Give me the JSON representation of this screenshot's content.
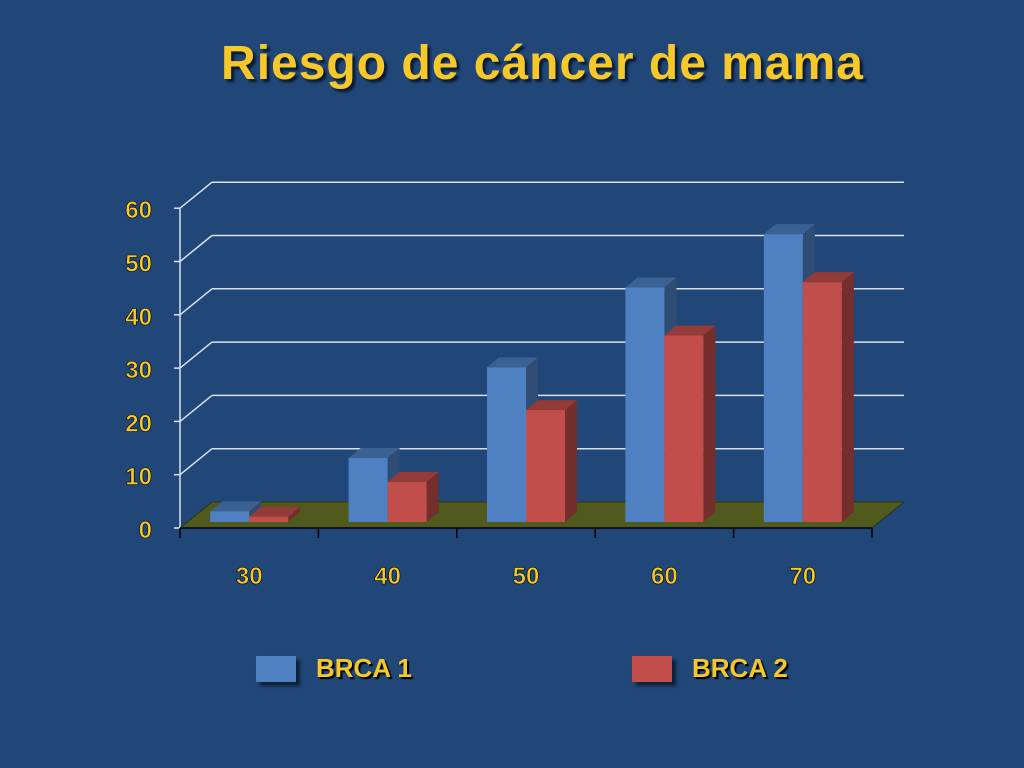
{
  "chart_data": {
    "type": "bar",
    "title": "Riesgo de cáncer de mama",
    "categories": [
      "30",
      "40",
      "50",
      "60",
      "70"
    ],
    "series": [
      {
        "name": "BRCA 1",
        "values": [
          2,
          12,
          29,
          44,
          54
        ],
        "color": "#4f80c2"
      },
      {
        "name": "BRCA 2",
        "values": [
          1,
          7.5,
          21,
          35,
          45
        ],
        "color": "#c24e4b"
      }
    ],
    "yticks": [
      "0",
      "10",
      "20",
      "30",
      "40",
      "50",
      "60"
    ],
    "ylim": [
      0,
      60
    ],
    "xlabel": "",
    "ylabel": "",
    "grid": true,
    "legend_position": "bottom",
    "colors": {
      "background": "#204778",
      "text": "#f6c82a",
      "floor": "#4f5a1c",
      "gridline": "#d9e2f0"
    }
  }
}
